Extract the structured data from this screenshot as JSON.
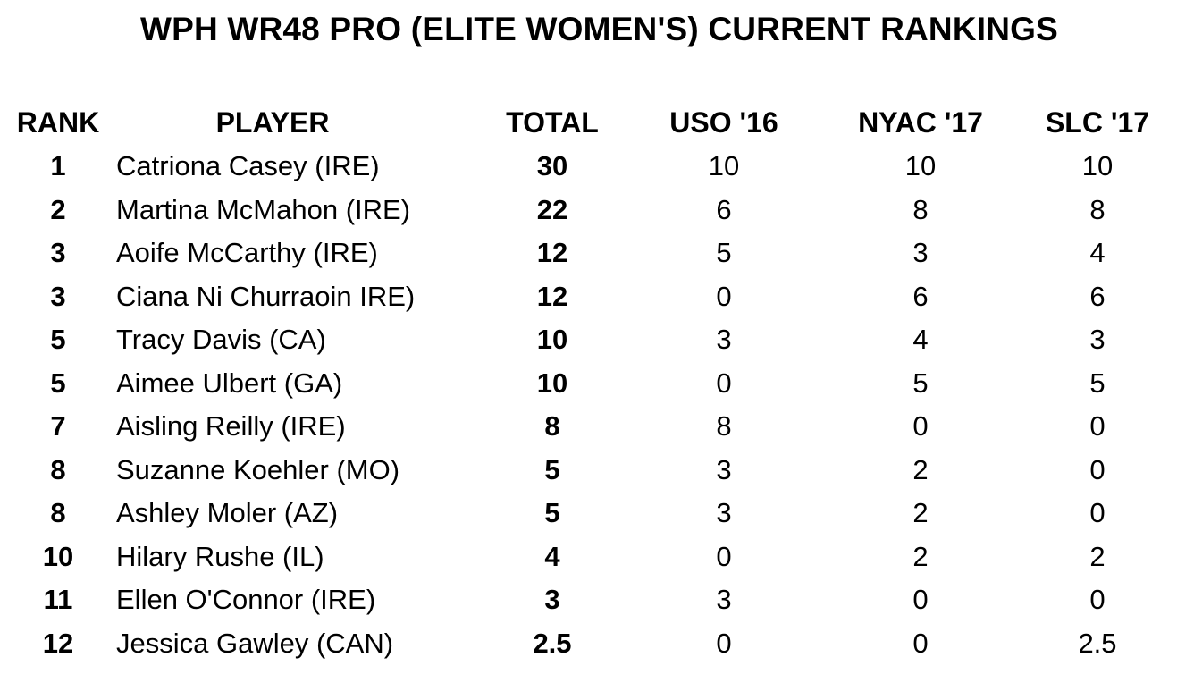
{
  "title": "WPH WR48 PRO (ELITE WOMEN'S) CURRENT RANKINGS",
  "table": {
    "headers": {
      "rank": "RANK",
      "player": "PLAYER",
      "total": "TOTAL",
      "uso16": "USO '16",
      "nyac17": "NYAC '17",
      "slc17": "SLC '17"
    },
    "rows": [
      {
        "rank": "1",
        "player": "Catriona Casey (IRE)",
        "total": "30",
        "uso16": "10",
        "nyac17": "10",
        "slc17": "10"
      },
      {
        "rank": "2",
        "player": "Martina McMahon (IRE)",
        "total": "22",
        "uso16": "6",
        "nyac17": "8",
        "slc17": "8"
      },
      {
        "rank": "3",
        "player": "Aoife McCarthy (IRE)",
        "total": "12",
        "uso16": "5",
        "nyac17": "3",
        "slc17": "4"
      },
      {
        "rank": "3",
        "player": "Ciana Ni Churraoin IRE)",
        "total": "12",
        "uso16": "0",
        "nyac17": "6",
        "slc17": "6"
      },
      {
        "rank": "5",
        "player": "Tracy Davis (CA)",
        "total": "10",
        "uso16": "3",
        "nyac17": "4",
        "slc17": "3"
      },
      {
        "rank": "5",
        "player": "Aimee Ulbert (GA)",
        "total": "10",
        "uso16": "0",
        "nyac17": "5",
        "slc17": "5"
      },
      {
        "rank": "7",
        "player": "Aisling Reilly (IRE)",
        "total": "8",
        "uso16": "8",
        "nyac17": "0",
        "slc17": "0"
      },
      {
        "rank": "8",
        "player": "Suzanne Koehler (MO)",
        "total": "5",
        "uso16": "3",
        "nyac17": "2",
        "slc17": "0"
      },
      {
        "rank": "8",
        "player": "Ashley Moler (AZ)",
        "total": "5",
        "uso16": "3",
        "nyac17": "2",
        "slc17": "0"
      },
      {
        "rank": "10",
        "player": "Hilary Rushe (IL)",
        "total": "4",
        "uso16": "0",
        "nyac17": "2",
        "slc17": "2"
      },
      {
        "rank": "11",
        "player": "Ellen O'Connor (IRE)",
        "total": "3",
        "uso16": "3",
        "nyac17": "0",
        "slc17": "0"
      },
      {
        "rank": "12",
        "player": "Jessica Gawley (CAN)",
        "total": "2.5",
        "uso16": "0",
        "nyac17": "0",
        "slc17": "2.5"
      }
    ]
  }
}
